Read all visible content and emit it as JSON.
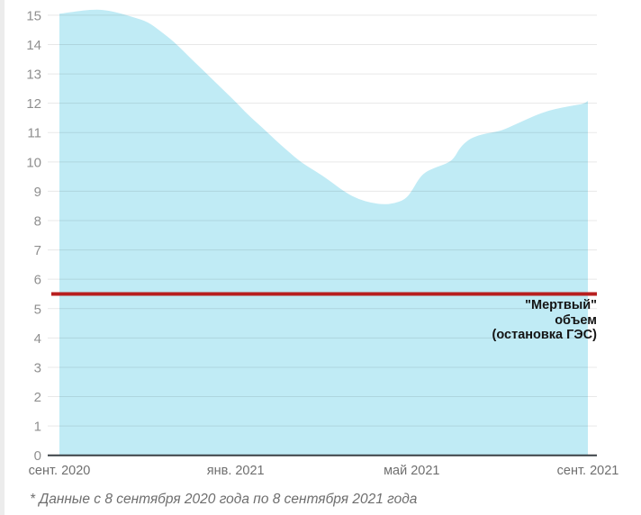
{
  "page": {
    "footnote": "* Данные с 8 сентября 2020 года по 8 сентября 2021 года"
  },
  "chart_data": {
    "type": "area",
    "title": "",
    "x_tick_labels": [
      "сент. 2020",
      "янв. 2021",
      "май 2021",
      "сент. 2021"
    ],
    "x_tick_months": [
      0,
      4,
      8,
      12
    ],
    "x_months": [
      0,
      0.35,
      0.7,
      1.0,
      1.35,
      1.7,
      2.0,
      2.3,
      2.6,
      3.0,
      3.3,
      3.6,
      4.0,
      4.3,
      4.6,
      4.9,
      5.2,
      5.5,
      5.8,
      6.1,
      6.5,
      6.8,
      7.1,
      7.35,
      7.6,
      7.85,
      8.0,
      8.15,
      8.3,
      8.55,
      8.8,
      8.95,
      9.1,
      9.3,
      9.5,
      9.7,
      9.9,
      10.1,
      10.5,
      10.8,
      11.1,
      11.4,
      11.7,
      11.9,
      12.0
    ],
    "values": [
      15.05,
      15.12,
      15.19,
      15.19,
      15.08,
      14.92,
      14.78,
      14.45,
      14.1,
      13.5,
      13.07,
      12.63,
      12.05,
      11.58,
      11.18,
      10.75,
      10.35,
      9.97,
      9.7,
      9.4,
      8.95,
      8.72,
      8.6,
      8.55,
      8.58,
      8.72,
      9.0,
      9.4,
      9.65,
      9.82,
      9.95,
      10.1,
      10.5,
      10.77,
      10.9,
      10.97,
      11.02,
      11.1,
      11.38,
      11.58,
      11.75,
      11.85,
      11.93,
      11.98,
      12.08
    ],
    "xlim_months": [
      0,
      12
    ],
    "ylim": [
      0,
      15
    ],
    "y_ticks": [
      0,
      1,
      2,
      3,
      4,
      5,
      6,
      7,
      8,
      9,
      10,
      11,
      12,
      13,
      14,
      15
    ],
    "grid": true,
    "legend": "none",
    "area_color": "#c0ebf5",
    "reference_line": {
      "value": 5.5,
      "color": "#b71f1f",
      "label_lines": [
        "\"Мертвый\"",
        "объем",
        "(остановка ГЭС)"
      ]
    }
  },
  "colors": {
    "background": "#ffffff",
    "page_edge_strip": "#ececec",
    "grid_line": "rgba(0,0,0,0.09)",
    "axis_line": "#3a4045",
    "y_tick_label": "#8f8f8f",
    "x_tick_label": "#6f6f6f",
    "annotation_text": "#141414",
    "footnote_text": "#6e6e6e"
  }
}
